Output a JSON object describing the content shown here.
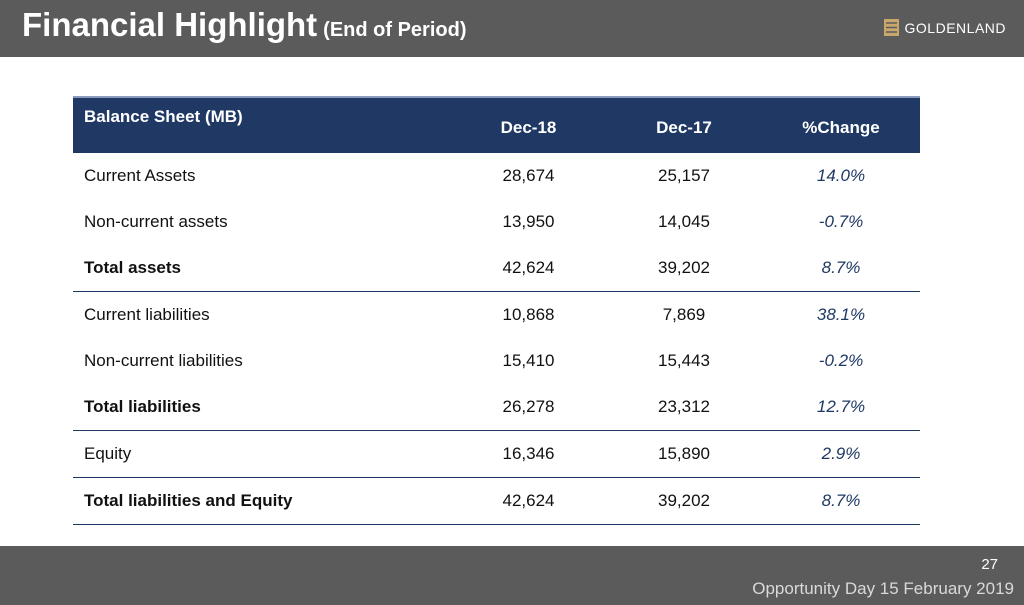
{
  "header": {
    "title": "Financial Highlight",
    "subtitle": "(End of Period)",
    "logo_text": "GOLDENLAND"
  },
  "table": {
    "headers": [
      "Balance Sheet (MB)",
      "Dec-18",
      "Dec-17",
      "%Change"
    ],
    "rows": [
      {
        "label": "Current Assets",
        "dec18": "28,674",
        "dec17": "25,157",
        "change": "14.0%"
      },
      {
        "label": "Non-current assets",
        "dec18": "13,950",
        "dec17": "14,045",
        "change": "-0.7%"
      },
      {
        "label": "Total assets",
        "dec18": "42,624",
        "dec17": "39,202",
        "change": "8.7%"
      },
      {
        "label": "Current liabilities",
        "dec18": "10,868",
        "dec17": "7,869",
        "change": "38.1%"
      },
      {
        "label": "Non-current liabilities",
        "dec18": "15,410",
        "dec17": "15,443",
        "change": "-0.2%"
      },
      {
        "label": "Total liabilities",
        "dec18": "26,278",
        "dec17": "23,312",
        "change": "12.7%"
      },
      {
        "label": "Equity",
        "dec18": "16,346",
        "dec17": "15,890",
        "change": "2.9%"
      },
      {
        "label": "Total liabilities and Equity",
        "dec18": "42,624",
        "dec17": "39,202",
        "change": "8.7%"
      }
    ]
  },
  "footer": {
    "page_number": "27",
    "event": "Opportunity Day 15 February 2019"
  },
  "colors": {
    "header_bg": "#5b5b5b",
    "table_header_bg": "#1f3864",
    "percent_text": "#1f3864",
    "logo_accent": "#c9a66b"
  }
}
